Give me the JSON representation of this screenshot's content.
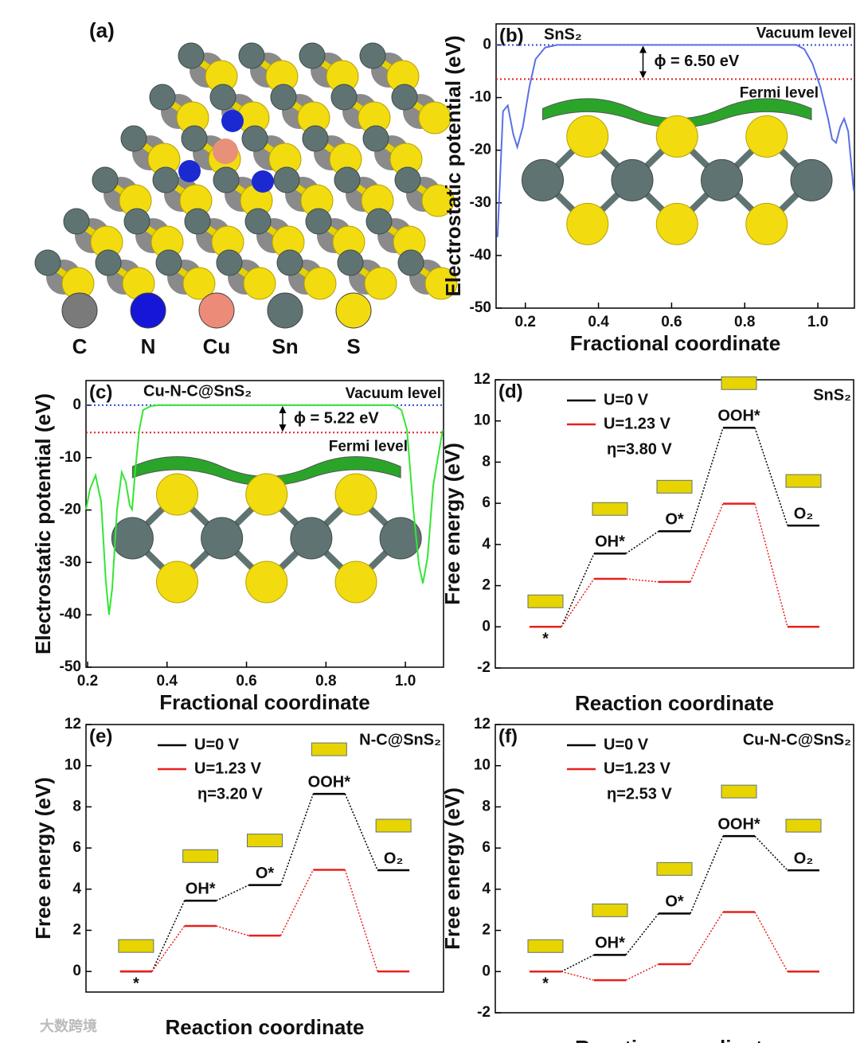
{
  "panel_a": {
    "label": "(a)",
    "legend": [
      "C",
      "N",
      "Cu",
      "Sn",
      "S"
    ]
  },
  "watermark": "大数跨境",
  "chart_data": [
    {
      "label": "(b)",
      "type": "line",
      "title": "SnS₂",
      "x_label": "Fractional coordinate",
      "y_label": "Electrostatic potential (eV)",
      "x": [
        0.124,
        0.139,
        0.152,
        0.167,
        0.178,
        0.193,
        0.211,
        0.228,
        0.254,
        0.287,
        0.941,
        0.963,
        0.985,
        1.007,
        1.028,
        1.039,
        1.05,
        1.061,
        1.072,
        1.083,
        1.098
      ],
      "series": [
        {
          "color": "#5a70e6",
          "values": [
            -36.5,
            -12.6,
            -11.5,
            -17,
            -19.4,
            -15.6,
            -8,
            -2.7,
            -0.5,
            0,
            0,
            -0.8,
            -3.5,
            -8,
            -14,
            -17.9,
            -18.6,
            -15.6,
            -14,
            -16.4,
            -27.7
          ]
        }
      ],
      "levels": [
        {
          "name": "Vacuum level",
          "value": 0,
          "color": "#2f4fd0"
        },
        {
          "name": "Fermi level",
          "value": -6.5,
          "color": "#e02020"
        }
      ],
      "annotation": "ϕ = 6.50 eV",
      "xlim": [
        0.12,
        1.1
      ],
      "xticks": [
        0.2,
        0.4,
        0.6,
        0.8,
        {
          "value": 1,
          "label": "1.0"
        }
      ],
      "ylim": [
        -50,
        4
      ],
      "yticks": [
        -50,
        -40,
        -30,
        -20,
        -10,
        0
      ]
    },
    {
      "label": "(c)",
      "type": "line",
      "title": "Cu-N-C@SnS₂",
      "x_label": "Fractional coordinate",
      "y_label": "Electrostatic potential (eV)",
      "x": [
        0.196,
        0.206,
        0.22,
        0.234,
        0.246,
        0.254,
        0.262,
        0.274,
        0.286,
        0.296,
        0.306,
        0.312,
        0.32,
        0.33,
        0.34,
        0.36,
        0.38,
        0.971,
        0.99,
        1.004,
        1.02,
        1.034,
        1.044,
        1.056,
        1.07,
        1.08,
        1.094
      ],
      "series": [
        {
          "color": "#33e633",
          "values": [
            -19.9,
            -16,
            -13.4,
            -18.4,
            -33.6,
            -40,
            -35,
            -20,
            -12.8,
            -14.6,
            -19.1,
            -19.9,
            -12.3,
            -4.7,
            -0.9,
            -0.15,
            0,
            0,
            -0.9,
            -4.7,
            -19.9,
            -30.5,
            -34,
            -29,
            -15.4,
            -10.8,
            -4.7
          ]
        }
      ],
      "levels": [
        {
          "name": "Vacuum level",
          "value": 0,
          "color": "#2f4fd0"
        },
        {
          "name": "Fermi level",
          "value": -5.22,
          "color": "#e02020"
        }
      ],
      "annotation": "ϕ = 5.22 eV",
      "xlim": [
        0.196,
        1.096
      ],
      "xticks": [
        0.2,
        0.4,
        0.6,
        0.8,
        {
          "value": 1,
          "label": "1.0"
        }
      ],
      "ylim": [
        -50,
        4.7
      ],
      "yticks": [
        -50,
        -40,
        -30,
        -20,
        -10,
        0
      ]
    },
    {
      "label": "(d)",
      "type": "energy_profile",
      "title": "SnS₂",
      "x_label": "Reaction coordinate",
      "y_label": "Free energy (eV)",
      "categories": [
        "*",
        "OH*",
        "O*",
        "OOH*",
        "O₂"
      ],
      "series": [
        {
          "name": "U=0 V",
          "color": "#000000",
          "values": [
            0,
            3.56,
            4.64,
            9.67,
            4.92
          ]
        },
        {
          "name": "U=1.23 V",
          "color": "#e8201e",
          "values": [
            0,
            2.33,
            2.18,
            5.98,
            0
          ]
        }
      ],
      "annotation": "η=3.80 V",
      "ylim": [
        -2,
        12
      ],
      "yticks": [
        -2,
        0,
        2,
        4,
        6,
        8,
        10,
        12
      ]
    },
    {
      "label": "(e)",
      "type": "energy_profile",
      "title": "N-C@SnS₂",
      "x_label": "Reaction coordinate",
      "y_label": "Free energy (eV)",
      "categories": [
        "*",
        "OH*",
        "O*",
        "OOH*",
        "O₂"
      ],
      "series": [
        {
          "name": "U=0 V",
          "color": "#000000",
          "values": [
            0,
            3.44,
            4.2,
            8.63,
            4.92
          ]
        },
        {
          "name": "U=1.23 V",
          "color": "#e8201e",
          "values": [
            0,
            2.21,
            1.74,
            4.94,
            0
          ]
        }
      ],
      "annotation": "η=3.20 V",
      "ylim": [
        -1,
        12
      ],
      "yticks": [
        0,
        2,
        4,
        6,
        8,
        10,
        12
      ]
    },
    {
      "label": "(f)",
      "type": "energy_profile",
      "title": "Cu-N-C@SnS₂",
      "x_label": "Reaction coordinate",
      "y_label": "Free energy (eV)",
      "categories": [
        "*",
        "OH*",
        "O*",
        "OOH*",
        "O₂"
      ],
      "series": [
        {
          "name": "U=0 V",
          "color": "#000000",
          "values": [
            0,
            0.81,
            2.82,
            6.58,
            4.92
          ]
        },
        {
          "name": "U=1.23 V",
          "color": "#e8201e",
          "values": [
            0,
            -0.42,
            0.36,
            2.89,
            0
          ]
        }
      ],
      "annotation": "η=2.53 V",
      "ylim": [
        -2,
        12
      ],
      "yticks": [
        -2,
        0,
        2,
        4,
        6,
        8,
        10,
        12
      ]
    }
  ]
}
